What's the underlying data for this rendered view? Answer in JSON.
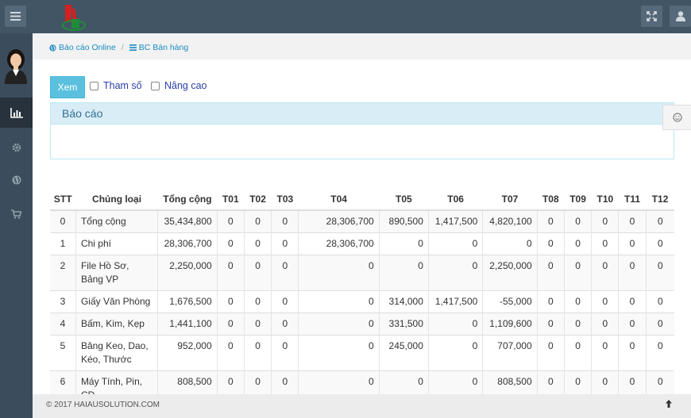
{
  "icons": {
    "menu": "hamburger-icon",
    "expand": "expand-icon",
    "user": "user-icon",
    "reports": "bar-chart-icon",
    "settings": "gear-icon",
    "globe": "globe-icon",
    "cart": "cart-icon",
    "float": "smile-icon",
    "to_top": "arrow-up-icon"
  },
  "breadcrumb": {
    "item1": "Báo cáo Online",
    "item2": "BC Bán hàng"
  },
  "toolbar": {
    "view_label": "Xem",
    "params_label": "Tham số",
    "advanced_label": "Nâng cao"
  },
  "panel": {
    "title": "Báo cáo"
  },
  "table": {
    "headers": [
      "STT",
      "Chủng loại",
      "Tổng cộng",
      "T01",
      "T02",
      "T03",
      "T04",
      "T05",
      "T06",
      "T07",
      "T08",
      "T09",
      "T10",
      "T11",
      "T12"
    ],
    "rows": [
      [
        "0",
        "Tổng cộng",
        "35,434,800",
        "0",
        "0",
        "0",
        "28,306,700",
        "890,500",
        "1,417,500",
        "4,820,100",
        "0",
        "0",
        "0",
        "0",
        "0"
      ],
      [
        "1",
        "Chi phí",
        "28,306,700",
        "0",
        "0",
        "0",
        "28,306,700",
        "0",
        "0",
        "0",
        "0",
        "0",
        "0",
        "0",
        "0"
      ],
      [
        "2",
        "File Hồ Sơ, Bảng VP",
        "2,250,000",
        "0",
        "0",
        "0",
        "0",
        "0",
        "0",
        "2,250,000",
        "0",
        "0",
        "0",
        "0",
        "0"
      ],
      [
        "3",
        "Giấy Văn Phòng",
        "1,676,500",
        "0",
        "0",
        "0",
        "0",
        "314,000",
        "1,417,500",
        "-55,000",
        "0",
        "0",
        "0",
        "0",
        "0"
      ],
      [
        "4",
        "Bấm, Kim, Kẹp",
        "1,441,100",
        "0",
        "0",
        "0",
        "0",
        "331,500",
        "0",
        "1,109,600",
        "0",
        "0",
        "0",
        "0",
        "0"
      ],
      [
        "5",
        "Băng Keo, Dao, Kéo, Thước",
        "952,000",
        "0",
        "0",
        "0",
        "0",
        "245,000",
        "0",
        "707,000",
        "0",
        "0",
        "0",
        "0",
        "0"
      ],
      [
        "6",
        "Máy Tính, Pin, CD",
        "808,500",
        "0",
        "0",
        "0",
        "0",
        "0",
        "0",
        "808,500",
        "0",
        "0",
        "0",
        "0",
        "0"
      ]
    ]
  },
  "footer": {
    "copyright": "© 2017 HAIAUSOLUTION.COM"
  }
}
